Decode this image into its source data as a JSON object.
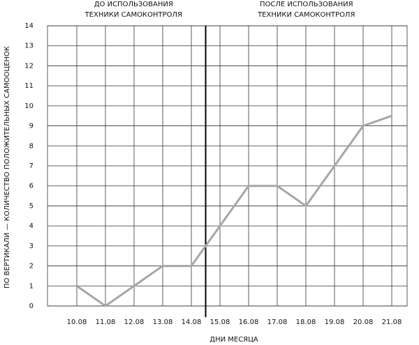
{
  "chart_data": {
    "type": "line",
    "x_label": "ДНИ МЕСЯЦА",
    "y_label": "ПО ВЕРТИКАЛИ — КОЛИЧЕСТВО ПОЛОЖИТЕЛЬНЫХ САМООЦЕНОК",
    "annotations": [
      {
        "lines": [
          "ДО ИСПОЛЬЗОВАНИЯ",
          "ТЕХНИКИ САМОКОНТРОЛЯ"
        ]
      },
      {
        "lines": [
          "ПОСЛЕ ИСПОЛЬЗОВАНИЯ",
          "ТЕХНИКИ САМОКОНТРОЛЯ"
        ]
      }
    ],
    "categories": [
      "10.08",
      "11.08",
      "12.08",
      "13.08",
      "14.08",
      "15.08",
      "16.08",
      "17.08",
      "18.08",
      "19.08",
      "20.08",
      "21.08"
    ],
    "values": [
      1,
      0,
      1,
      2,
      2,
      4,
      6,
      6,
      5,
      7,
      9,
      9.5
    ],
    "color": "#a6a6a6",
    "ylim": [
      0,
      14
    ],
    "yticks": [
      0,
      1,
      2,
      3,
      4,
      5,
      6,
      7,
      8,
      9,
      10,
      11,
      12,
      13,
      14
    ],
    "grid": true
  }
}
